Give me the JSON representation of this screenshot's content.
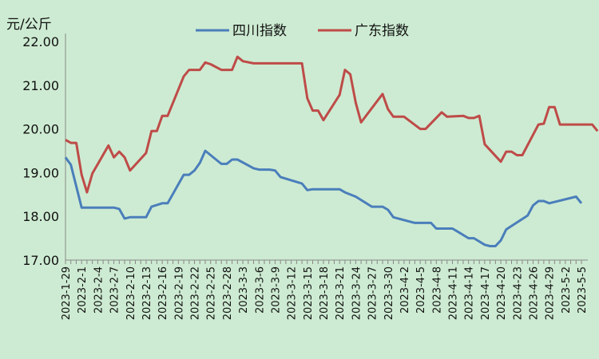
{
  "chart_data": {
    "type": "line",
    "title": "",
    "ylabel": "元/公斤",
    "ylim": [
      17.0,
      22.0
    ],
    "yticks": [
      "17.00",
      "18.00",
      "19.00",
      "20.00",
      "21.00",
      "22.00"
    ],
    "legend_position": "top",
    "grid": false,
    "x_tick_labels": [
      "2023-1-29",
      "2023-2-1",
      "2023-2-4",
      "2023-2-7",
      "2023-2-10",
      "2023-2-13",
      "2023-2-16",
      "2023-2-19",
      "2023-2-22",
      "2023-2-25",
      "2023-2-28",
      "2023-3-3",
      "2023-3-6",
      "2023-3-9",
      "2023-3-12",
      "2023-3-15",
      "2023-3-18",
      "2023-3-21",
      "2023-3-24",
      "2023-3-27",
      "2023-3-30",
      "2023-4-2",
      "2023-4-5",
      "2023-4-8",
      "2023-4-11",
      "2023-4-14",
      "2023-4-17",
      "2023-4-20",
      "2023-4-23",
      "2023-4-26",
      "2023-4-29",
      "2023-5-2",
      "2023-5-5"
    ],
    "x_start": "2023-01-29",
    "x_end": "2023-05-05",
    "series": [
      {
        "name": "四川指数",
        "color": "#4a7ebb",
        "points": [
          [
            "2023-01-29",
            19.35
          ],
          [
            "2023-01-30",
            19.18
          ],
          [
            "2023-02-01",
            18.2
          ],
          [
            "2023-02-06",
            18.2
          ],
          [
            "2023-02-07",
            18.2
          ],
          [
            "2023-02-08",
            18.17
          ],
          [
            "2023-02-09",
            17.95
          ],
          [
            "2023-02-10",
            17.98
          ],
          [
            "2023-02-13",
            17.98
          ],
          [
            "2023-02-14",
            18.22
          ],
          [
            "2023-02-16",
            18.3
          ],
          [
            "2023-02-17",
            18.3
          ],
          [
            "2023-02-20",
            18.95
          ],
          [
            "2023-02-21",
            18.95
          ],
          [
            "2023-02-22",
            19.05
          ],
          [
            "2023-02-23",
            19.22
          ],
          [
            "2023-02-24",
            19.5
          ],
          [
            "2023-02-27",
            19.2
          ],
          [
            "2023-02-28",
            19.2
          ],
          [
            "2023-03-01",
            19.3
          ],
          [
            "2023-03-02",
            19.3
          ],
          [
            "2023-03-05",
            19.1
          ],
          [
            "2023-03-06",
            19.07
          ],
          [
            "2023-03-08",
            19.07
          ],
          [
            "2023-03-09",
            19.05
          ],
          [
            "2023-03-10",
            18.9
          ],
          [
            "2023-03-14",
            18.75
          ],
          [
            "2023-03-15",
            18.6
          ],
          [
            "2023-03-16",
            18.62
          ],
          [
            "2023-03-21",
            18.62
          ],
          [
            "2023-03-22",
            18.55
          ],
          [
            "2023-03-24",
            18.45
          ],
          [
            "2023-03-27",
            18.22
          ],
          [
            "2023-03-29",
            18.22
          ],
          [
            "2023-03-30",
            18.15
          ],
          [
            "2023-03-31",
            17.98
          ],
          [
            "2023-04-04",
            17.85
          ],
          [
            "2023-04-07",
            17.85
          ],
          [
            "2023-04-08",
            17.72
          ],
          [
            "2023-04-11",
            17.72
          ],
          [
            "2023-04-12",
            17.65
          ],
          [
            "2023-04-14",
            17.5
          ],
          [
            "2023-04-15",
            17.5
          ],
          [
            "2023-04-17",
            17.35
          ],
          [
            "2023-04-18",
            17.32
          ],
          [
            "2023-04-19",
            17.32
          ],
          [
            "2023-04-20",
            17.45
          ],
          [
            "2023-04-21",
            17.7
          ],
          [
            "2023-04-25",
            18.02
          ],
          [
            "2023-04-26",
            18.25
          ],
          [
            "2023-04-27",
            18.35
          ],
          [
            "2023-04-28",
            18.35
          ],
          [
            "2023-04-29",
            18.3
          ],
          [
            "2023-05-04",
            18.45
          ],
          [
            "2023-05-05",
            18.3
          ]
        ]
      },
      {
        "name": "广东指数",
        "color": "#be4b48",
        "points": [
          [
            "2023-01-29",
            19.75
          ],
          [
            "2023-01-30",
            19.68
          ],
          [
            "2023-01-31",
            19.68
          ],
          [
            "2023-02-01",
            18.95
          ],
          [
            "2023-02-02",
            18.55
          ],
          [
            "2023-02-03",
            18.98
          ],
          [
            "2023-02-06",
            19.62
          ],
          [
            "2023-02-07",
            19.35
          ],
          [
            "2023-02-08",
            19.48
          ],
          [
            "2023-02-09",
            19.35
          ],
          [
            "2023-02-10",
            19.05
          ],
          [
            "2023-02-13",
            19.45
          ],
          [
            "2023-02-14",
            19.95
          ],
          [
            "2023-02-15",
            19.95
          ],
          [
            "2023-02-16",
            20.3
          ],
          [
            "2023-02-17",
            20.3
          ],
          [
            "2023-02-20",
            21.2
          ],
          [
            "2023-02-21",
            21.35
          ],
          [
            "2023-02-23",
            21.35
          ],
          [
            "2023-02-24",
            21.52
          ],
          [
            "2023-02-25",
            21.48
          ],
          [
            "2023-02-27",
            21.35
          ],
          [
            "2023-03-01",
            21.35
          ],
          [
            "2023-03-02",
            21.65
          ],
          [
            "2023-03-03",
            21.55
          ],
          [
            "2023-03-05",
            21.5
          ],
          [
            "2023-03-14",
            21.5
          ],
          [
            "2023-03-15",
            20.7
          ],
          [
            "2023-03-16",
            20.42
          ],
          [
            "2023-03-17",
            20.42
          ],
          [
            "2023-03-18",
            20.2
          ],
          [
            "2023-03-21",
            20.78
          ],
          [
            "2023-03-22",
            21.35
          ],
          [
            "2023-03-23",
            21.25
          ],
          [
            "2023-03-24",
            20.6
          ],
          [
            "2023-03-25",
            20.15
          ],
          [
            "2023-03-29",
            20.8
          ],
          [
            "2023-03-30",
            20.45
          ],
          [
            "2023-03-31",
            20.28
          ],
          [
            "2023-04-02",
            20.28
          ],
          [
            "2023-04-05",
            20.0
          ],
          [
            "2023-04-06",
            20.0
          ],
          [
            "2023-04-09",
            20.38
          ],
          [
            "2023-04-10",
            20.28
          ],
          [
            "2023-04-13",
            20.3
          ],
          [
            "2023-04-14",
            20.25
          ],
          [
            "2023-04-15",
            20.25
          ],
          [
            "2023-04-16",
            20.3
          ],
          [
            "2023-04-17",
            19.65
          ],
          [
            "2023-04-20",
            19.25
          ],
          [
            "2023-04-21",
            19.48
          ],
          [
            "2023-04-22",
            19.48
          ],
          [
            "2023-04-23",
            19.4
          ],
          [
            "2023-04-24",
            19.4
          ],
          [
            "2023-04-27",
            20.1
          ],
          [
            "2023-04-28",
            20.12
          ],
          [
            "2023-04-29",
            20.5
          ],
          [
            "2023-04-30",
            20.5
          ],
          [
            "2023-05-01",
            20.1
          ],
          [
            "2023-05-07",
            20.1
          ],
          [
            "2023-05-08",
            19.95
          ]
        ]
      }
    ]
  }
}
